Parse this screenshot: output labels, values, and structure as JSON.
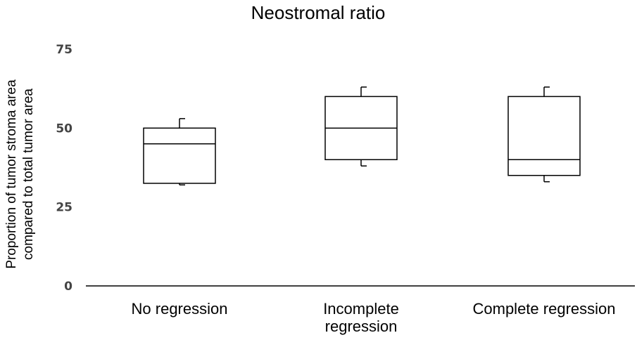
{
  "chart_data": {
    "type": "box",
    "title": "Neostromal ratio",
    "ylabel": [
      "Proportion of tumor stroma area",
      "compared to total tumor area"
    ],
    "xlabel": "",
    "ylim": [
      0,
      75
    ],
    "yticks": [
      0,
      25,
      50,
      75
    ],
    "ytick_labels": [
      "0",
      "25",
      "50",
      "75"
    ],
    "grid": false,
    "categories": [
      [
        "No regression"
      ],
      [
        "Incomplete",
        "regression"
      ],
      [
        "Complete regression"
      ]
    ],
    "boxes": [
      {
        "min": 32.0,
        "q1": 32.5,
        "median": 45.0,
        "q3": 50.0,
        "max": 53.0
      },
      {
        "min": 38.0,
        "q1": 40.0,
        "median": 50.0,
        "q3": 60.0,
        "max": 63.0
      },
      {
        "min": 33.0,
        "q1": 35.0,
        "median": 40.0,
        "q3": 60.0,
        "max": 63.0
      }
    ]
  }
}
